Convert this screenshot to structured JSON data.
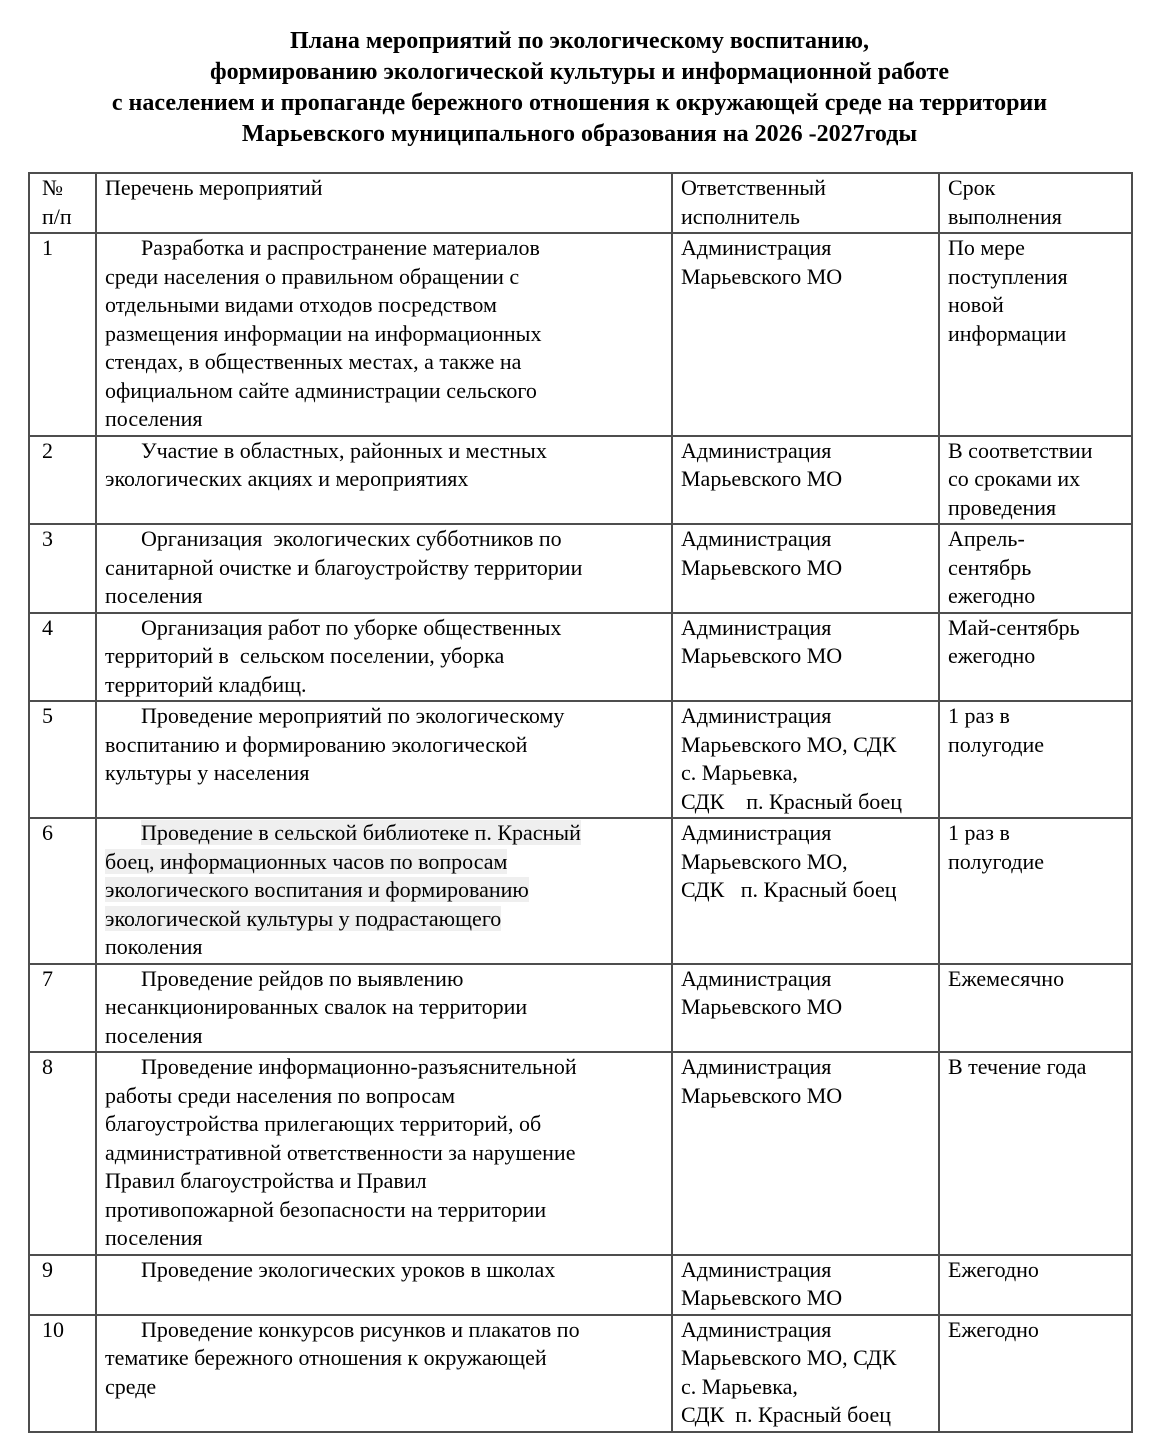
{
  "document": {
    "title_lines": [
      "Плана мероприятий по экологическому воспитанию,",
      "формированию экологической культуры и информационной работе",
      "с населением и пропаганде бережного отношения к окружающей среде на территории",
      "Марьевского муниципального образования на 2026 -2027годы"
    ]
  },
  "table": {
    "headers": {
      "num": "№\nп/п",
      "activity": "Перечень мероприятий",
      "executor": "Ответственный\nисполнитель",
      "term": "Срок\nвыполнения"
    },
    "rows": [
      {
        "num": "1",
        "activity_parts": [
          {
            "text": "Разработка и распространение материалов\nсреди населения о правильном обращении с\nотдельными видами отходов посредством\nразмещения информации на информационных\nстендах, в общественных местах, а также на\nофициальном сайте администрации сельского\nпоселения",
            "highlight": false
          }
        ],
        "executor": "Администрация\nМарьевского МО",
        "term": "По мере\nпоступления\nновой\nинформации"
      },
      {
        "num": "2",
        "activity_parts": [
          {
            "text": "Участие в областных, районных и местных\nэкологических акциях и мероприятиях",
            "highlight": false
          }
        ],
        "executor": "Администрация\nМарьевского МО",
        "term": "В соответствии\nсо сроками их\nпроведения"
      },
      {
        "num": "3",
        "activity_parts": [
          {
            "text": "Организация  экологических субботников по\nсанитарной очистке и благоустройству территории\nпоселения",
            "highlight": false
          }
        ],
        "executor": "Администрация\nМарьевского МО",
        "term": "Апрель-\nсентябрь\nежегодно"
      },
      {
        "num": "4",
        "activity_parts": [
          {
            "text": "Организация работ по уборке общественных\nтерриторий в  сельском поселении, уборка\nтерриторий кладбищ.",
            "highlight": false
          }
        ],
        "executor": "Администрация\nМарьевского МО",
        "term": "Май-сентябрь\nежегодно"
      },
      {
        "num": "5",
        "activity_parts": [
          {
            "text": "Проведение мероприятий по экологическому\nвоспитанию и формированию экологической\nкультуры у населения",
            "highlight": false
          }
        ],
        "executor": "Администрация\nМарьевского МО, СДК\nс. Марьевка,\nСДК    п. Красный боец",
        "term": "1 раз в\nполугодие"
      },
      {
        "num": "6",
        "activity_parts": [
          {
            "text": "Проведение в сельской библиотеке п. Красный\nбоец, информационных часов по вопросам\nэкологического воспитания и формированию\nэкологической культуры у подрастающего",
            "highlight": true
          },
          {
            "text": "\nпоколения",
            "highlight": false
          }
        ],
        "executor": "Администрация\nМарьевского МО,\nСДК   п. Красный боец",
        "term": "1 раз в\nполугодие"
      },
      {
        "num": "7",
        "activity_parts": [
          {
            "text": "Проведение рейдов по выявлению\nнесанкционированных свалок на территории\nпоселения",
            "highlight": false
          }
        ],
        "executor": "Администрация\nМарьевского МО",
        "term": "Ежемесячно"
      },
      {
        "num": "8",
        "activity_parts": [
          {
            "text": "Проведение информационно-разъяснительной\nработы среди населения по вопросам\nблагоустройства прилегающих территорий, об\nадминистративной ответственности за нарушение\nПравил благоустройства и Правил\nпротивопожарной безопасности на территории\nпоселения",
            "highlight": false
          }
        ],
        "executor": "Администрация\nМарьевского МО",
        "term": "В течение года"
      },
      {
        "num": "9",
        "activity_parts": [
          {
            "text": "Проведение экологических уроков в школах",
            "highlight": false
          }
        ],
        "executor": "Администрация\nМарьевского МО",
        "term": "Ежегодно"
      },
      {
        "num": "10",
        "activity_parts": [
          {
            "text": "Проведение конкурсов рисунков и плакатов по\nтематике бережного отношения к окружающей\nсреде",
            "highlight": false
          }
        ],
        "executor": "Администрация\nМарьевского МО, СДК\nс. Марьевка,\nСДК  п. Красный боец",
        "term": "Ежегодно"
      }
    ]
  },
  "colors": {
    "page_bg": "#ffffff",
    "text": "#000000",
    "border": "#4d4d4d",
    "highlight_bg": "#efefef"
  }
}
